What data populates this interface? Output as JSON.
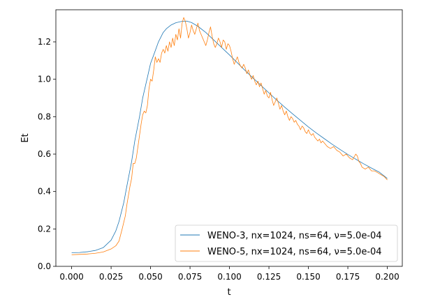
{
  "chart_data": {
    "type": "line",
    "title": "",
    "xlabel": "t",
    "ylabel": "Et",
    "xlim": [
      -0.01,
      0.2095
    ],
    "ylim": [
      0.0,
      1.3715
    ],
    "xticks": [
      "0.000",
      "0.025",
      "0.050",
      "0.075",
      "0.100",
      "0.125",
      "0.150",
      "0.175",
      "0.200"
    ],
    "yticks": [
      "0.0",
      "0.2",
      "0.4",
      "0.6",
      "0.8",
      "1.0",
      "1.2"
    ],
    "grid": false,
    "legend_position": "lower right",
    "series": [
      {
        "name": "WENO-3, nx=1024, ns=64, ν=5.0e-04",
        "color": "#1f77b4",
        "points": [
          [
            0.0,
            0.073
          ],
          [
            0.005,
            0.074
          ],
          [
            0.01,
            0.078
          ],
          [
            0.015,
            0.085
          ],
          [
            0.02,
            0.1
          ],
          [
            0.025,
            0.14
          ],
          [
            0.028,
            0.19
          ],
          [
            0.03,
            0.24
          ],
          [
            0.033,
            0.34
          ],
          [
            0.035,
            0.43
          ],
          [
            0.038,
            0.56
          ],
          [
            0.04,
            0.67
          ],
          [
            0.043,
            0.8
          ],
          [
            0.045,
            0.9
          ],
          [
            0.048,
            1.01
          ],
          [
            0.05,
            1.085
          ],
          [
            0.052,
            1.13
          ],
          [
            0.055,
            1.2
          ],
          [
            0.058,
            1.25
          ],
          [
            0.06,
            1.27
          ],
          [
            0.063,
            1.29
          ],
          [
            0.066,
            1.302
          ],
          [
            0.07,
            1.31
          ],
          [
            0.073,
            1.311
          ],
          [
            0.076,
            1.303
          ],
          [
            0.08,
            1.283
          ],
          [
            0.085,
            1.25
          ],
          [
            0.09,
            1.21
          ],
          [
            0.095,
            1.17
          ],
          [
            0.1,
            1.13
          ],
          [
            0.105,
            1.088
          ],
          [
            0.11,
            1.046
          ],
          [
            0.115,
            1.006
          ],
          [
            0.12,
            0.967
          ],
          [
            0.125,
            0.927
          ],
          [
            0.13,
            0.888
          ],
          [
            0.135,
            0.851
          ],
          [
            0.14,
            0.815
          ],
          [
            0.145,
            0.78
          ],
          [
            0.15,
            0.745
          ],
          [
            0.155,
            0.713
          ],
          [
            0.16,
            0.683
          ],
          [
            0.165,
            0.653
          ],
          [
            0.17,
            0.625
          ],
          [
            0.175,
            0.598
          ],
          [
            0.18,
            0.573
          ],
          [
            0.185,
            0.548
          ],
          [
            0.19,
            0.525
          ],
          [
            0.195,
            0.503
          ],
          [
            0.2,
            0.47
          ]
        ]
      },
      {
        "name": "WENO-5, nx=1024, ns=64, ν=5.0e-04",
        "color": "#ff7f0e",
        "points": [
          [
            0.0,
            0.062
          ],
          [
            0.005,
            0.064
          ],
          [
            0.01,
            0.066
          ],
          [
            0.015,
            0.07
          ],
          [
            0.02,
            0.077
          ],
          [
            0.025,
            0.093
          ],
          [
            0.028,
            0.11
          ],
          [
            0.03,
            0.135
          ],
          [
            0.032,
            0.2
          ],
          [
            0.034,
            0.27
          ],
          [
            0.035,
            0.33
          ],
          [
            0.036,
            0.38
          ],
          [
            0.037,
            0.43
          ],
          [
            0.038,
            0.47
          ],
          [
            0.039,
            0.55
          ],
          [
            0.04,
            0.55
          ],
          [
            0.041,
            0.58
          ],
          [
            0.042,
            0.64
          ],
          [
            0.043,
            0.7
          ],
          [
            0.044,
            0.76
          ],
          [
            0.045,
            0.81
          ],
          [
            0.046,
            0.83
          ],
          [
            0.047,
            0.82
          ],
          [
            0.048,
            0.86
          ],
          [
            0.049,
            0.95
          ],
          [
            0.05,
            1.0
          ],
          [
            0.051,
            0.99
          ],
          [
            0.052,
            1.05
          ],
          [
            0.053,
            1.12
          ],
          [
            0.054,
            1.09
          ],
          [
            0.055,
            1.11
          ],
          [
            0.056,
            1.09
          ],
          [
            0.057,
            1.14
          ],
          [
            0.058,
            1.16
          ],
          [
            0.059,
            1.14
          ],
          [
            0.06,
            1.18
          ],
          [
            0.061,
            1.15
          ],
          [
            0.062,
            1.2
          ],
          [
            0.063,
            1.17
          ],
          [
            0.064,
            1.22
          ],
          [
            0.065,
            1.18
          ],
          [
            0.066,
            1.24
          ],
          [
            0.067,
            1.21
          ],
          [
            0.068,
            1.27
          ],
          [
            0.069,
            1.22
          ],
          [
            0.07,
            1.3
          ],
          [
            0.071,
            1.33
          ],
          [
            0.072,
            1.31
          ],
          [
            0.073,
            1.27
          ],
          [
            0.074,
            1.22
          ],
          [
            0.075,
            1.25
          ],
          [
            0.076,
            1.29
          ],
          [
            0.077,
            1.26
          ],
          [
            0.078,
            1.24
          ],
          [
            0.079,
            1.27
          ],
          [
            0.08,
            1.3
          ],
          [
            0.081,
            1.26
          ],
          [
            0.082,
            1.24
          ],
          [
            0.083,
            1.22
          ],
          [
            0.084,
            1.2
          ],
          [
            0.085,
            1.18
          ],
          [
            0.086,
            1.21
          ],
          [
            0.087,
            1.25
          ],
          [
            0.088,
            1.28
          ],
          [
            0.089,
            1.23
          ],
          [
            0.09,
            1.19
          ],
          [
            0.091,
            1.17
          ],
          [
            0.092,
            1.19
          ],
          [
            0.093,
            1.22
          ],
          [
            0.094,
            1.2
          ],
          [
            0.095,
            1.17
          ],
          [
            0.096,
            1.21
          ],
          [
            0.097,
            1.2
          ],
          [
            0.098,
            1.16
          ],
          [
            0.099,
            1.19
          ],
          [
            0.1,
            1.18
          ],
          [
            0.101,
            1.15
          ],
          [
            0.102,
            1.11
          ],
          [
            0.103,
            1.08
          ],
          [
            0.104,
            1.1
          ],
          [
            0.105,
            1.12
          ],
          [
            0.106,
            1.09
          ],
          [
            0.107,
            1.07
          ],
          [
            0.108,
            1.06
          ],
          [
            0.109,
            1.08
          ],
          [
            0.11,
            1.06
          ],
          [
            0.111,
            1.03
          ],
          [
            0.112,
            1.05
          ],
          [
            0.113,
            1.02
          ],
          [
            0.114,
            1.0
          ],
          [
            0.115,
            1.02
          ],
          [
            0.116,
            0.99
          ],
          [
            0.117,
            0.97
          ],
          [
            0.118,
            0.99
          ],
          [
            0.119,
            0.96
          ],
          [
            0.12,
            0.98
          ],
          [
            0.121,
            0.95
          ],
          [
            0.122,
            0.92
          ],
          [
            0.123,
            0.94
          ],
          [
            0.124,
            0.91
          ],
          [
            0.125,
            0.9
          ],
          [
            0.126,
            0.93
          ],
          [
            0.127,
            0.89
          ],
          [
            0.128,
            0.86
          ],
          [
            0.129,
            0.88
          ],
          [
            0.13,
            0.9
          ],
          [
            0.131,
            0.87
          ],
          [
            0.132,
            0.84
          ],
          [
            0.133,
            0.86
          ],
          [
            0.134,
            0.83
          ],
          [
            0.135,
            0.81
          ],
          [
            0.136,
            0.83
          ],
          [
            0.137,
            0.8
          ],
          [
            0.138,
            0.78
          ],
          [
            0.139,
            0.8
          ],
          [
            0.14,
            0.79
          ],
          [
            0.141,
            0.77
          ],
          [
            0.142,
            0.78
          ],
          [
            0.143,
            0.76
          ],
          [
            0.144,
            0.75
          ],
          [
            0.145,
            0.73
          ],
          [
            0.146,
            0.75
          ],
          [
            0.147,
            0.74
          ],
          [
            0.148,
            0.72
          ],
          [
            0.149,
            0.71
          ],
          [
            0.15,
            0.73
          ],
          [
            0.151,
            0.71
          ],
          [
            0.152,
            0.7
          ],
          [
            0.153,
            0.71
          ],
          [
            0.154,
            0.69
          ],
          [
            0.155,
            0.68
          ],
          [
            0.156,
            0.67
          ],
          [
            0.157,
            0.68
          ],
          [
            0.158,
            0.66
          ],
          [
            0.159,
            0.67
          ],
          [
            0.16,
            0.66
          ],
          [
            0.162,
            0.64
          ],
          [
            0.164,
            0.63
          ],
          [
            0.166,
            0.64
          ],
          [
            0.168,
            0.62
          ],
          [
            0.17,
            0.61
          ],
          [
            0.172,
            0.59
          ],
          [
            0.174,
            0.6
          ],
          [
            0.176,
            0.58
          ],
          [
            0.178,
            0.57
          ],
          [
            0.18,
            0.6
          ],
          [
            0.181,
            0.59
          ],
          [
            0.182,
            0.56
          ],
          [
            0.183,
            0.55
          ],
          [
            0.184,
            0.53
          ],
          [
            0.186,
            0.52
          ],
          [
            0.188,
            0.53
          ],
          [
            0.19,
            0.51
          ],
          [
            0.192,
            0.51
          ],
          [
            0.194,
            0.5
          ],
          [
            0.196,
            0.49
          ],
          [
            0.198,
            0.48
          ],
          [
            0.2,
            0.462
          ]
        ]
      }
    ]
  }
}
